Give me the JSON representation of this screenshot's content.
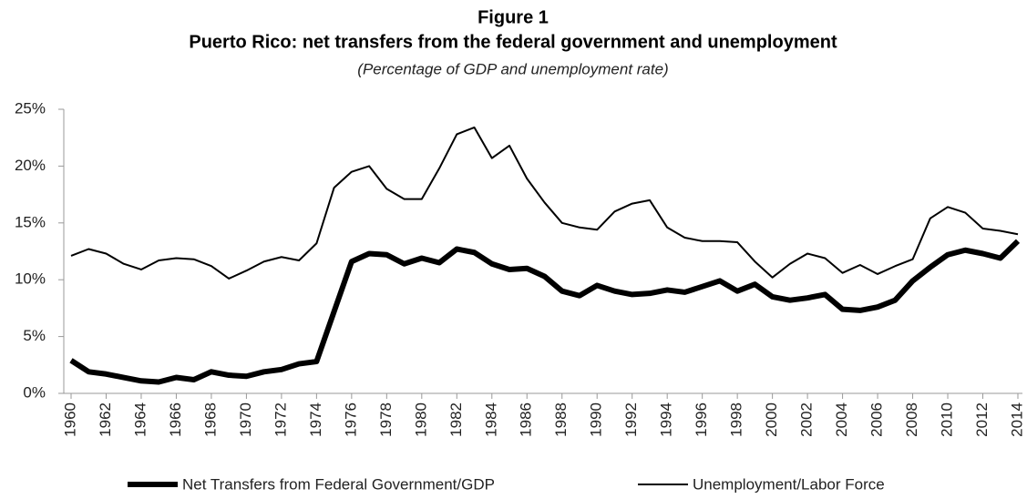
{
  "chart_data": {
    "type": "line",
    "title": "Figure 1",
    "subtitle": "Puerto Rico: net transfers from the federal government and unemployment",
    "note": "(Percentage of GDP and unemployment rate)",
    "x": [
      1960,
      1961,
      1962,
      1963,
      1964,
      1965,
      1966,
      1967,
      1968,
      1969,
      1970,
      1971,
      1972,
      1973,
      1974,
      1975,
      1976,
      1977,
      1978,
      1979,
      1980,
      1981,
      1982,
      1983,
      1984,
      1985,
      1986,
      1987,
      1988,
      1989,
      1990,
      1991,
      1992,
      1993,
      1994,
      1995,
      1996,
      1997,
      1998,
      1999,
      2000,
      2001,
      2002,
      2003,
      2004,
      2005,
      2006,
      2007,
      2008,
      2009,
      2010,
      2011,
      2012,
      2013,
      2014
    ],
    "xlim": [
      1960,
      2014
    ],
    "xticks": [
      1960,
      1962,
      1964,
      1966,
      1968,
      1970,
      1972,
      1974,
      1976,
      1978,
      1980,
      1982,
      1984,
      1986,
      1988,
      1990,
      1992,
      1994,
      1996,
      1998,
      2000,
      2002,
      2004,
      2006,
      2008,
      2010,
      2012,
      2014
    ],
    "ylim": [
      0,
      25
    ],
    "yticks": [
      {
        "value": 0,
        "label": "0%"
      },
      {
        "value": 5,
        "label": "5%"
      },
      {
        "value": 10,
        "label": "10%"
      },
      {
        "value": 15,
        "label": "15%"
      },
      {
        "value": 20,
        "label": "20%"
      },
      {
        "value": 25,
        "label": "25%"
      }
    ],
    "legend": "bottom",
    "series": [
      {
        "name": "Net Transfers from Federal Government/GDP",
        "color": "#000000",
        "line_width": 6,
        "values": [
          2.9,
          1.9,
          1.7,
          1.4,
          1.1,
          1.0,
          1.4,
          1.2,
          1.9,
          1.6,
          1.5,
          1.9,
          2.1,
          2.6,
          2.8,
          7.2,
          11.6,
          12.3,
          12.2,
          11.4,
          11.9,
          11.5,
          12.7,
          12.4,
          11.4,
          10.9,
          11.0,
          10.3,
          9.0,
          8.6,
          9.5,
          9.0,
          8.7,
          8.8,
          9.1,
          8.9,
          9.4,
          9.9,
          9.0,
          9.6,
          8.5,
          8.2,
          8.4,
          8.7,
          7.4,
          7.3,
          7.6,
          8.2,
          9.9,
          11.1,
          12.2,
          12.6,
          12.3,
          11.9,
          13.4
        ]
      },
      {
        "name": "Unemployment/Labor Force",
        "color": "#000000",
        "line_width": 2,
        "values": [
          12.1,
          12.7,
          12.3,
          11.4,
          10.9,
          11.7,
          11.9,
          11.8,
          11.2,
          10.1,
          10.8,
          11.6,
          12.0,
          11.7,
          13.2,
          18.1,
          19.5,
          20.0,
          18.0,
          17.1,
          17.1,
          19.8,
          22.8,
          23.4,
          20.7,
          21.8,
          18.9,
          16.8,
          15.0,
          14.6,
          14.4,
          16.0,
          16.7,
          17.0,
          14.6,
          13.7,
          13.4,
          13.4,
          13.3,
          11.6,
          10.2,
          11.4,
          12.3,
          11.9,
          10.6,
          11.3,
          10.5,
          11.2,
          11.8,
          15.4,
          16.4,
          15.9,
          14.5,
          14.3,
          14.0
        ]
      }
    ]
  }
}
